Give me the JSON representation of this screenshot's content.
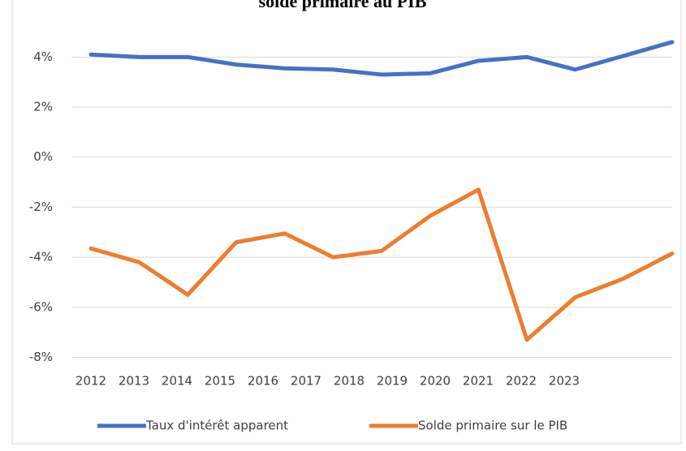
{
  "chart_data": {
    "type": "line",
    "title": "solde primaire au PIB",
    "categories": [
      "2012",
      "2013",
      "2014",
      "2015",
      "2016",
      "2017",
      "2018",
      "2019",
      "2020",
      "2021",
      "2022",
      "2023",
      null
    ],
    "series": [
      {
        "name": "Taux d'intérêt apparent",
        "color": "#4472c4",
        "values": [
          4.1,
          4.0,
          4.0,
          3.7,
          3.55,
          3.5,
          3.3,
          3.35,
          3.85,
          4.0,
          3.5,
          4.05,
          4.6
        ]
      },
      {
        "name": "Solde primaire sur le PIB",
        "color": "#ed7d31",
        "values": [
          -3.65,
          -4.2,
          -5.5,
          -3.4,
          -3.05,
          -4.0,
          -3.75,
          -2.35,
          -1.3,
          -7.3,
          -5.6,
          -4.85,
          -3.85
        ]
      }
    ],
    "ylim": [
      -8,
      5
    ],
    "yticks": [
      {
        "value": -8,
        "label": "-8%"
      },
      {
        "value": -6,
        "label": "-6%"
      },
      {
        "value": -4,
        "label": "-4%"
      },
      {
        "value": -2,
        "label": "-2%"
      },
      {
        "value": 0,
        "label": "0%"
      },
      {
        "value": 2,
        "label": "2%"
      },
      {
        "value": 4,
        "label": "4%"
      }
    ],
    "grid": true,
    "legend": "bottom"
  }
}
